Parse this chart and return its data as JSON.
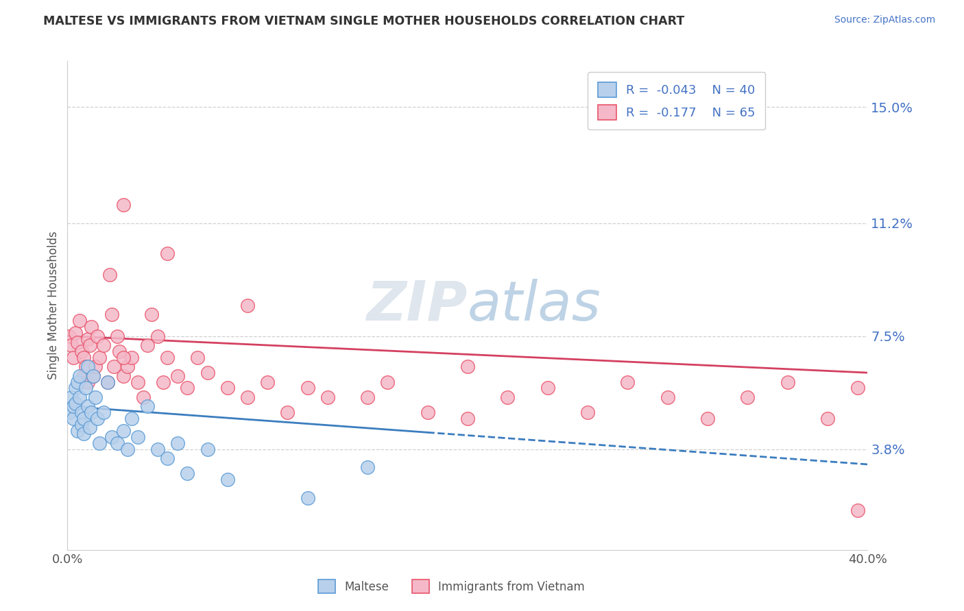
{
  "title": "MALTESE VS IMMIGRANTS FROM VIETNAM SINGLE MOTHER HOUSEHOLDS CORRELATION CHART",
  "source": "Source: ZipAtlas.com",
  "ylabel": "Single Mother Households",
  "xlim": [
    0.0,
    0.4
  ],
  "ylim": [
    0.005,
    0.165
  ],
  "yticks": [
    0.038,
    0.075,
    0.112,
    0.15
  ],
  "ytick_labels": [
    "3.8%",
    "7.5%",
    "11.2%",
    "15.0%"
  ],
  "legend_r1": "R =  -0.043",
  "legend_n1": "N = 40",
  "legend_r2": "R =  -0.177",
  "legend_n2": "N = 65",
  "maltese_color": "#b8d0eb",
  "vietnam_color": "#f4b8c8",
  "maltese_edge_color": "#5b9bd5",
  "vietnam_edge_color": "#e8546a",
  "maltese_line_color": "#3b7dbf",
  "vietnam_line_color": "#d44060",
  "maltese_x": [
    0.001,
    0.002,
    0.003,
    0.003,
    0.004,
    0.004,
    0.005,
    0.005,
    0.006,
    0.006,
    0.007,
    0.007,
    0.008,
    0.008,
    0.009,
    0.01,
    0.01,
    0.011,
    0.012,
    0.013,
    0.014,
    0.015,
    0.016,
    0.018,
    0.02,
    0.022,
    0.025,
    0.028,
    0.03,
    0.032,
    0.035,
    0.04,
    0.045,
    0.05,
    0.055,
    0.06,
    0.07,
    0.08,
    0.12,
    0.15
  ],
  "maltese_y": [
    0.05,
    0.055,
    0.048,
    0.052,
    0.053,
    0.058,
    0.06,
    0.044,
    0.062,
    0.055,
    0.05,
    0.046,
    0.048,
    0.043,
    0.058,
    0.052,
    0.065,
    0.045,
    0.05,
    0.062,
    0.055,
    0.048,
    0.04,
    0.05,
    0.06,
    0.042,
    0.04,
    0.044,
    0.038,
    0.048,
    0.042,
    0.052,
    0.038,
    0.035,
    0.04,
    0.03,
    0.038,
    0.028,
    0.022,
    0.032
  ],
  "vietnam_x": [
    0.001,
    0.002,
    0.003,
    0.004,
    0.005,
    0.006,
    0.007,
    0.008,
    0.008,
    0.009,
    0.01,
    0.01,
    0.011,
    0.012,
    0.013,
    0.014,
    0.015,
    0.016,
    0.018,
    0.02,
    0.021,
    0.022,
    0.023,
    0.025,
    0.026,
    0.028,
    0.03,
    0.032,
    0.035,
    0.038,
    0.04,
    0.042,
    0.045,
    0.048,
    0.05,
    0.055,
    0.06,
    0.065,
    0.07,
    0.08,
    0.09,
    0.1,
    0.11,
    0.12,
    0.13,
    0.15,
    0.16,
    0.18,
    0.2,
    0.22,
    0.24,
    0.26,
    0.28,
    0.3,
    0.32,
    0.34,
    0.36,
    0.38,
    0.395,
    0.028,
    0.05,
    0.09,
    0.2,
    0.028,
    0.395
  ],
  "vietnam_y": [
    0.075,
    0.072,
    0.068,
    0.076,
    0.073,
    0.08,
    0.07,
    0.068,
    0.062,
    0.065,
    0.074,
    0.06,
    0.072,
    0.078,
    0.062,
    0.065,
    0.075,
    0.068,
    0.072,
    0.06,
    0.095,
    0.082,
    0.065,
    0.075,
    0.07,
    0.062,
    0.065,
    0.068,
    0.06,
    0.055,
    0.072,
    0.082,
    0.075,
    0.06,
    0.068,
    0.062,
    0.058,
    0.068,
    0.063,
    0.058,
    0.055,
    0.06,
    0.05,
    0.058,
    0.055,
    0.055,
    0.06,
    0.05,
    0.048,
    0.055,
    0.058,
    0.05,
    0.06,
    0.055,
    0.048,
    0.055,
    0.06,
    0.048,
    0.058,
    0.118,
    0.102,
    0.085,
    0.065,
    0.068,
    0.018
  ],
  "trendline_maltese_x0": 0.0,
  "trendline_maltese_x1": 0.4,
  "trendline_maltese_y0": 0.052,
  "trendline_maltese_y1": 0.033,
  "trendline_vietnam_x0": 0.0,
  "trendline_vietnam_x1": 0.4,
  "trendline_vietnam_y0": 0.075,
  "trendline_vietnam_y1": 0.063
}
